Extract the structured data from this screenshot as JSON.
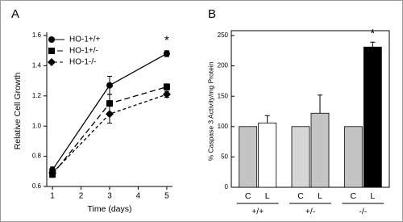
{
  "chart_data": [
    {
      "type": "line",
      "panel_label": "A",
      "x_label": "Time (days)",
      "y_label": "Relative Cell Growth",
      "x": [
        1,
        3,
        5
      ],
      "xlim": [
        0.8,
        5.2
      ],
      "xticks": [
        1,
        2,
        3,
        4,
        5
      ],
      "ylim": [
        0.6,
        1.6
      ],
      "yticks": [
        {
          "value": 0.6,
          "label": "0.6"
        },
        {
          "value": 0.8,
          "label": "0.8"
        },
        {
          "value": 1.0,
          "label": "1.0"
        },
        {
          "value": 1.2,
          "label": "1.2"
        },
        {
          "value": 1.4,
          "label": "1.4"
        },
        {
          "value": 1.6,
          "label": "1.6"
        }
      ],
      "annotation": "*",
      "series": [
        {
          "name": "HO-1+/+",
          "color": "#000000",
          "marker": "circle",
          "dash": "solid",
          "values": [
            0.71,
            1.27,
            1.48
          ],
          "errors": [
            0.02,
            0.06,
            0.02
          ]
        },
        {
          "name": "HO-1+/-",
          "color": "#000000",
          "marker": "square",
          "dash": "long",
          "values": [
            0.68,
            1.15,
            1.26
          ],
          "errors": [
            0.02,
            0.06,
            0.02
          ]
        },
        {
          "name": "HO-1-/-",
          "color": "#000000",
          "marker": "diamond",
          "dash": "short",
          "values": [
            0.69,
            1.08,
            1.21
          ],
          "errors": [
            0.02,
            0.06,
            0.02
          ]
        }
      ]
    },
    {
      "type": "bar",
      "panel_label": "B",
      "y_label": "% Caspase 3 Activity/mg Protein",
      "categories": [
        "C",
        "L",
        "C",
        "L",
        "C",
        "L"
      ],
      "groups": [
        "+/+",
        "+/-",
        "-/-"
      ],
      "values": [
        100,
        106,
        100,
        122,
        100,
        231
      ],
      "errors": [
        null,
        12,
        null,
        30,
        null,
        8
      ],
      "colors": [
        "#c4c4c4",
        "#ffffff",
        "#d6d6d6",
        "#c4c4c4",
        "#c4c4c4",
        "#000000"
      ],
      "ylim": [
        0,
        250
      ],
      "yticks": [
        0,
        50,
        100,
        150,
        200,
        250
      ],
      "annotation": "*"
    }
  ]
}
